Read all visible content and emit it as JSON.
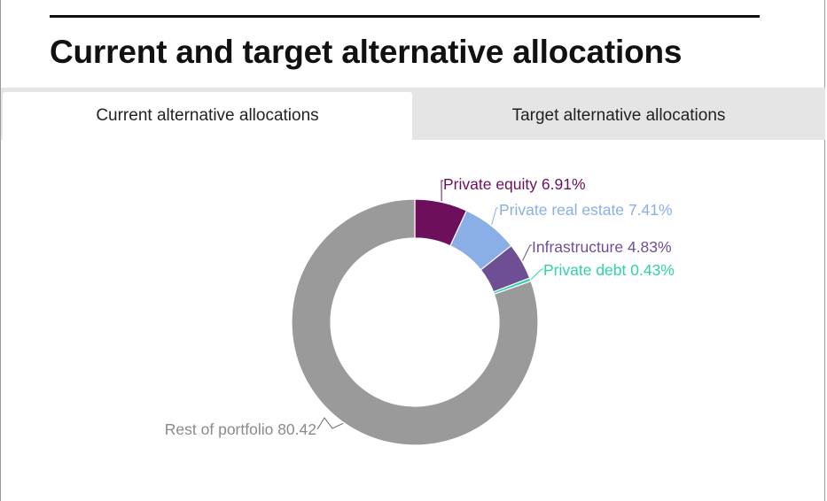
{
  "header": {
    "title": "Current and target alternative allocations"
  },
  "tabs": [
    {
      "label": "Current alternative allocations",
      "active": true
    },
    {
      "label": "Target alternative allocations",
      "active": false
    }
  ],
  "chart_data": {
    "type": "pie",
    "donut": true,
    "title": "",
    "slices": [
      {
        "name": "Private equity",
        "value": 6.91,
        "label": "Private equity 6.91%",
        "color": "#6e0f5c"
      },
      {
        "name": "Private real estate",
        "value": 7.41,
        "label": "Private real estate 7.41%",
        "color": "#8aaee6"
      },
      {
        "name": "Infrastructure",
        "value": 4.83,
        "label": "Infrastructure 4.83%",
        "color": "#6e4f95"
      },
      {
        "name": "Private debt",
        "value": 0.43,
        "label": "Private debt 0.43%",
        "color": "#2fd3a6"
      },
      {
        "name": "Rest of portfolio",
        "value": 80.42,
        "label": "Rest of portfolio 80.42",
        "color": "#9a9a9a"
      }
    ]
  }
}
